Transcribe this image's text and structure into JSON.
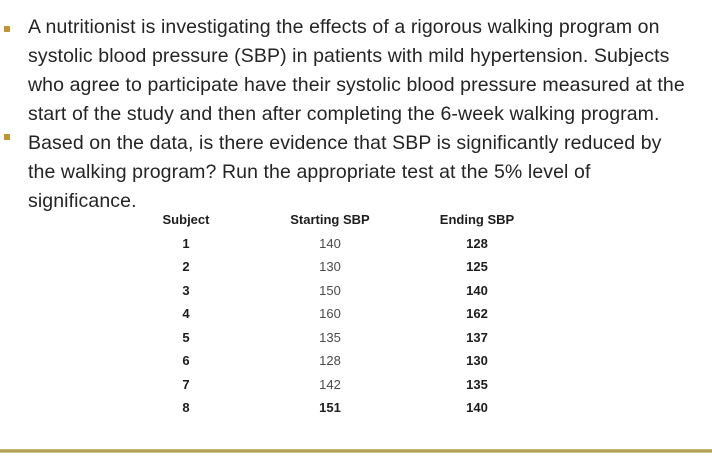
{
  "slide": {
    "background_color": "#ffffff",
    "bullet_color": "#c0952f",
    "divider_color": "#b1a156"
  },
  "bullets": [
    {
      "lines": [
        "A nutritionist is investigating the effects of a rigorous walking program on",
        "systolic blood pressure (SBP) in patients with mild hypertension. Subjects",
        "who agree to participate have their systolic blood pressure measured at the",
        "start of the study and then after completing the 6-week walking program."
      ]
    },
    {
      "lines": [
        "Based on the data, is there evidence that SBP is significantly reduced by",
        "the walking program? Run the appropriate test at the 5% level of",
        "significance."
      ]
    }
  ],
  "table": {
    "headers": [
      "Subject",
      "Starting SBP",
      "Ending SBP"
    ],
    "rows": [
      {
        "subject": "1",
        "starting": "140",
        "ending": "128",
        "starting_bold": false
      },
      {
        "subject": "2",
        "starting": "130",
        "ending": "125",
        "starting_bold": false
      },
      {
        "subject": "3",
        "starting": "150",
        "ending": "140",
        "starting_bold": false
      },
      {
        "subject": "4",
        "starting": "160",
        "ending": "162",
        "starting_bold": false
      },
      {
        "subject": "5",
        "starting": "135",
        "ending": "137",
        "starting_bold": false
      },
      {
        "subject": "6",
        "starting": "128",
        "ending": "130",
        "starting_bold": false
      },
      {
        "subject": "7",
        "starting": "142",
        "ending": "135",
        "starting_bold": false
      },
      {
        "subject": "8",
        "starting": "151",
        "ending": "140",
        "starting_bold": true
      }
    ]
  }
}
